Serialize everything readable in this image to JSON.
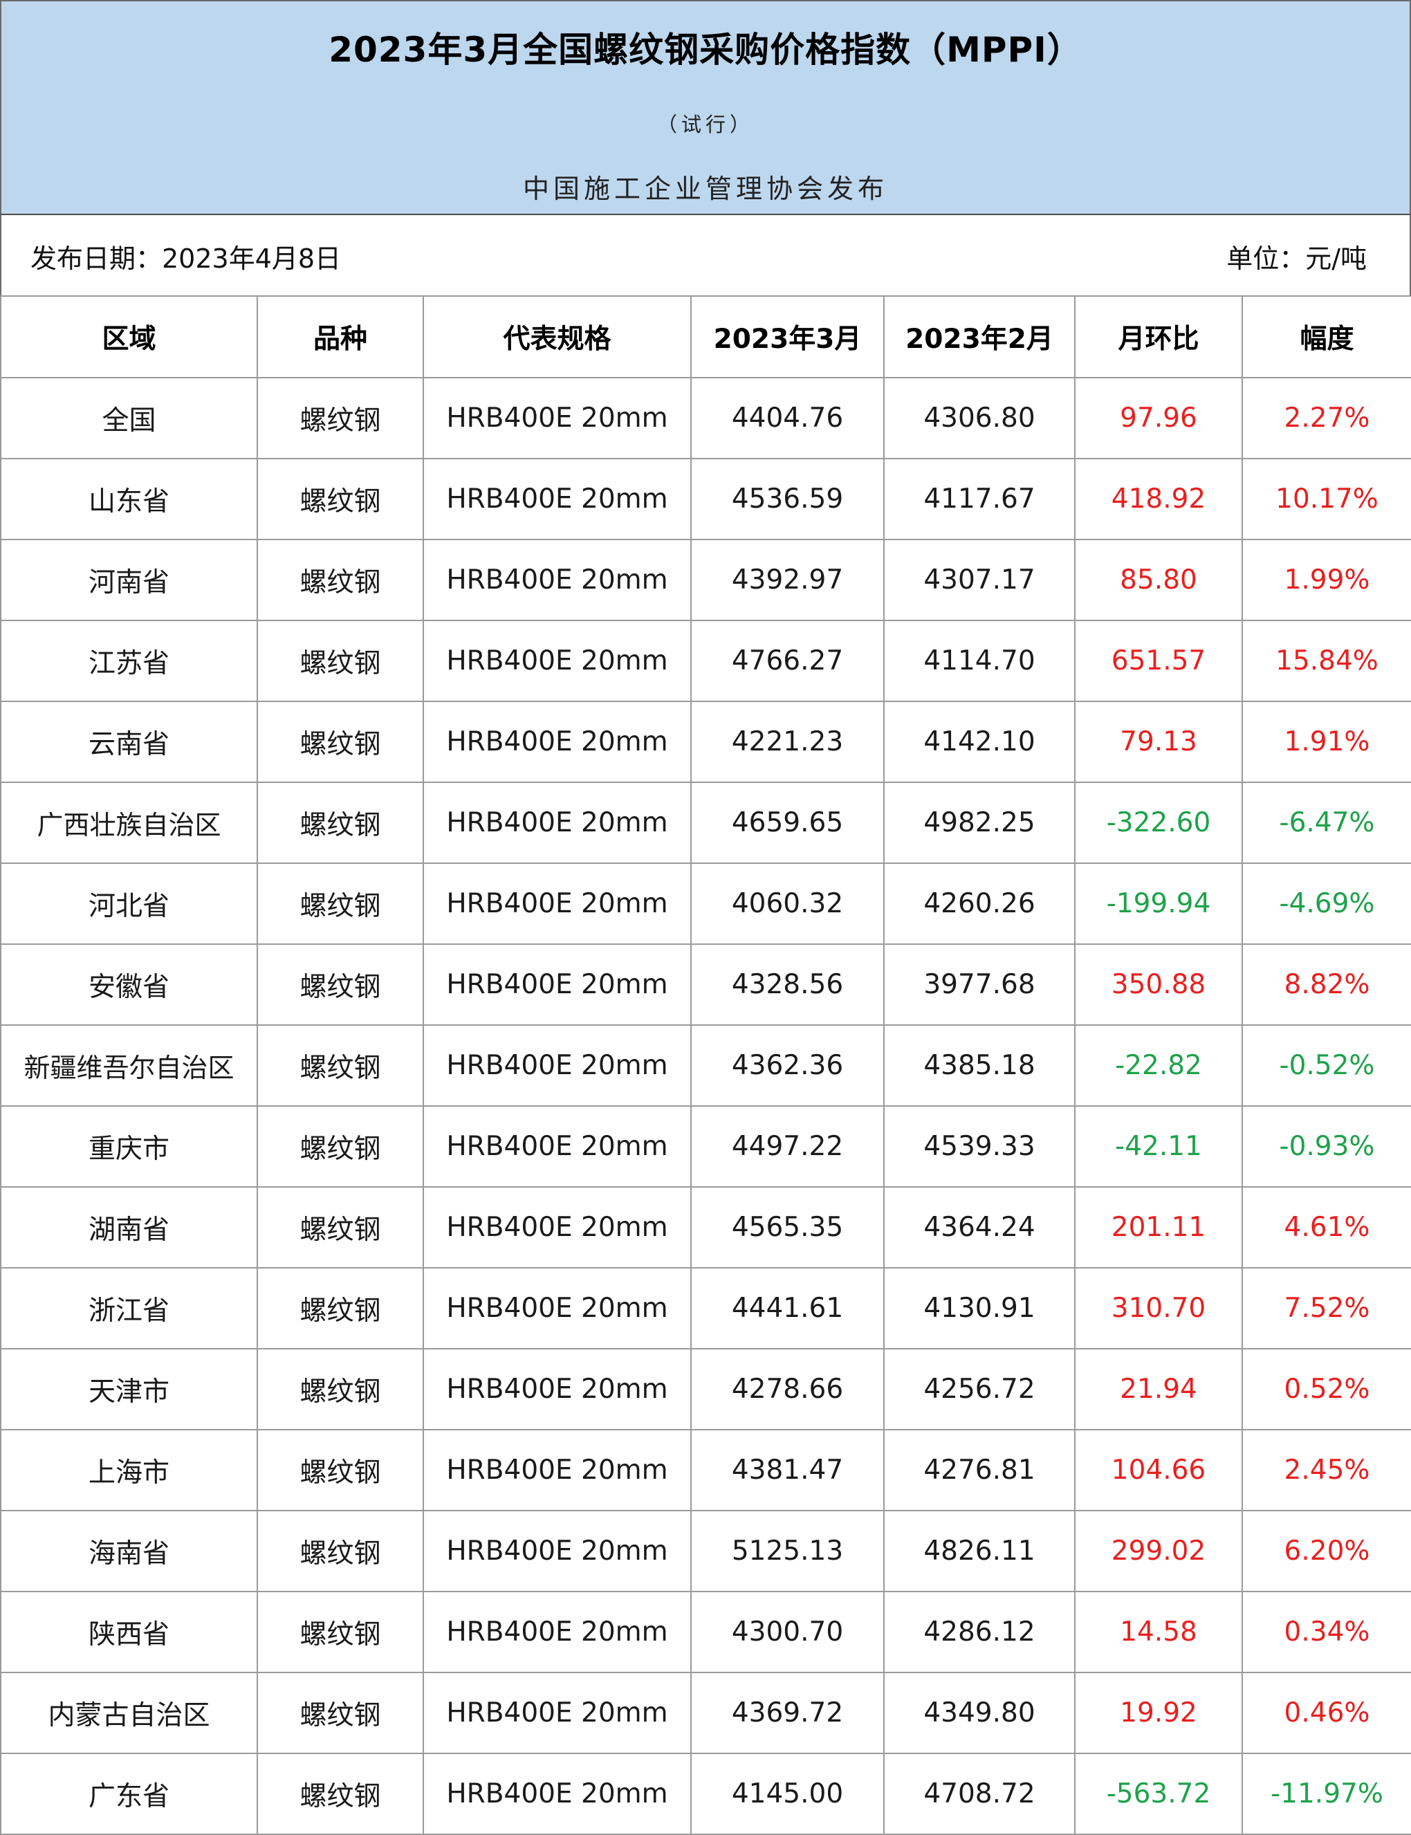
{
  "header": {
    "title": "2023年3月全国螺纹钢采购价格指数（MPPI）",
    "subtitle": "（试行）",
    "publisher": "中国施工企业管理协会发布"
  },
  "info": {
    "date": "发布日期：2023年4月8日",
    "unit": "单位：元/吨"
  },
  "colors": {
    "header_bg": "#bdd7ee",
    "increase": "#e8201f",
    "decrease": "#1ea24a"
  },
  "table": {
    "columns": [
      "区域",
      "品种",
      "代表规格",
      "2023年3月",
      "2023年2月",
      "月环比",
      "幅度"
    ],
    "rows": [
      {
        "region": "全国",
        "variety": "螺纹钢",
        "spec": "HRB400E 20mm",
        "mar": "4404.76",
        "feb": "4306.80",
        "mom": "97.96",
        "pct": "2.27%",
        "trend": "up"
      },
      {
        "region": "山东省",
        "variety": "螺纹钢",
        "spec": "HRB400E 20mm",
        "mar": "4536.59",
        "feb": "4117.67",
        "mom": "418.92",
        "pct": "10.17%",
        "trend": "up"
      },
      {
        "region": "河南省",
        "variety": "螺纹钢",
        "spec": "HRB400E 20mm",
        "mar": "4392.97",
        "feb": "4307.17",
        "mom": "85.80",
        "pct": "1.99%",
        "trend": "up"
      },
      {
        "region": "江苏省",
        "variety": "螺纹钢",
        "spec": "HRB400E 20mm",
        "mar": "4766.27",
        "feb": "4114.70",
        "mom": "651.57",
        "pct": "15.84%",
        "trend": "up"
      },
      {
        "region": "云南省",
        "variety": "螺纹钢",
        "spec": "HRB400E 20mm",
        "mar": "4221.23",
        "feb": "4142.10",
        "mom": "79.13",
        "pct": "1.91%",
        "trend": "up"
      },
      {
        "region": "广西壮族自治区",
        "variety": "螺纹钢",
        "spec": "HRB400E 20mm",
        "mar": "4659.65",
        "feb": "4982.25",
        "mom": "-322.60",
        "pct": "-6.47%",
        "trend": "down"
      },
      {
        "region": "河北省",
        "variety": "螺纹钢",
        "spec": "HRB400E 20mm",
        "mar": "4060.32",
        "feb": "4260.26",
        "mom": "-199.94",
        "pct": "-4.69%",
        "trend": "down"
      },
      {
        "region": "安徽省",
        "variety": "螺纹钢",
        "spec": "HRB400E 20mm",
        "mar": "4328.56",
        "feb": "3977.68",
        "mom": "350.88",
        "pct": "8.82%",
        "trend": "up"
      },
      {
        "region": "新疆维吾尔自治区",
        "variety": "螺纹钢",
        "spec": "HRB400E 20mm",
        "mar": "4362.36",
        "feb": "4385.18",
        "mom": "-22.82",
        "pct": "-0.52%",
        "trend": "down"
      },
      {
        "region": "重庆市",
        "variety": "螺纹钢",
        "spec": "HRB400E 20mm",
        "mar": "4497.22",
        "feb": "4539.33",
        "mom": "-42.11",
        "pct": "-0.93%",
        "trend": "down"
      },
      {
        "region": "湖南省",
        "variety": "螺纹钢",
        "spec": "HRB400E 20mm",
        "mar": "4565.35",
        "feb": "4364.24",
        "mom": "201.11",
        "pct": "4.61%",
        "trend": "up"
      },
      {
        "region": "浙江省",
        "variety": "螺纹钢",
        "spec": "HRB400E 20mm",
        "mar": "4441.61",
        "feb": "4130.91",
        "mom": "310.70",
        "pct": "7.52%",
        "trend": "up"
      },
      {
        "region": "天津市",
        "variety": "螺纹钢",
        "spec": "HRB400E 20mm",
        "mar": "4278.66",
        "feb": "4256.72",
        "mom": "21.94",
        "pct": "0.52%",
        "trend": "up"
      },
      {
        "region": "上海市",
        "variety": "螺纹钢",
        "spec": "HRB400E 20mm",
        "mar": "4381.47",
        "feb": "4276.81",
        "mom": "104.66",
        "pct": "2.45%",
        "trend": "up"
      },
      {
        "region": "海南省",
        "variety": "螺纹钢",
        "spec": "HRB400E 20mm",
        "mar": "5125.13",
        "feb": "4826.11",
        "mom": "299.02",
        "pct": "6.20%",
        "trend": "up"
      },
      {
        "region": "陕西省",
        "variety": "螺纹钢",
        "spec": "HRB400E 20mm",
        "mar": "4300.70",
        "feb": "4286.12",
        "mom": "14.58",
        "pct": "0.34%",
        "trend": "up"
      },
      {
        "region": "内蒙古自治区",
        "variety": "螺纹钢",
        "spec": "HRB400E 20mm",
        "mar": "4369.72",
        "feb": "4349.80",
        "mom": "19.92",
        "pct": "0.46%",
        "trend": "up"
      },
      {
        "region": "广东省",
        "variety": "螺纹钢",
        "spec": "HRB400E 20mm",
        "mar": "4145.00",
        "feb": "4708.72",
        "mom": "-563.72",
        "pct": "-11.97%",
        "trend": "down"
      }
    ]
  }
}
